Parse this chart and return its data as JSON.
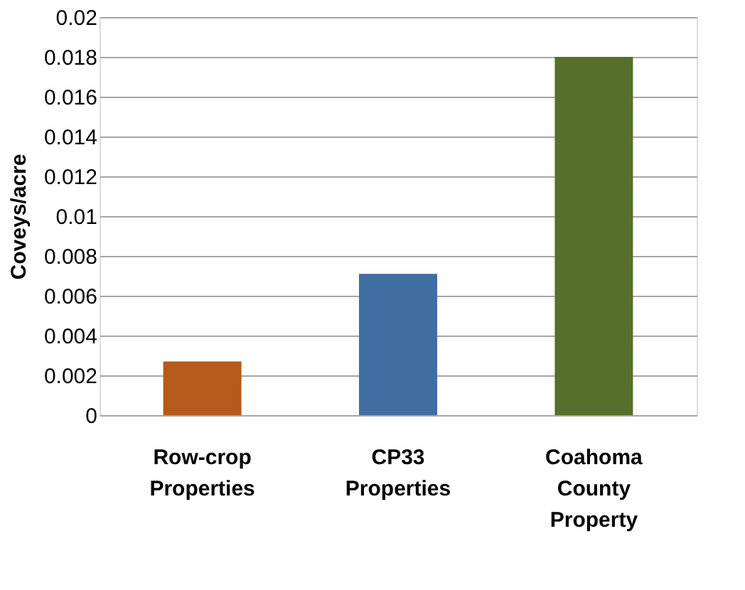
{
  "chart_data": {
    "type": "bar",
    "ylabel": "Coveys/acre",
    "categories": [
      "Row-crop Properties",
      "CP33 Properties",
      "Coahoma County Property"
    ],
    "values": [
      0.0027,
      0.0071,
      0.018
    ],
    "colors": [
      "#b55a1a",
      "#3f6ea3",
      "#56702b"
    ],
    "ylim": [
      0,
      0.02
    ],
    "yticks": [
      0,
      0.002,
      0.004,
      0.006,
      0.008,
      0.01,
      0.012,
      0.014,
      0.016,
      0.018,
      0.02
    ],
    "grid": "y",
    "legend": false
  }
}
